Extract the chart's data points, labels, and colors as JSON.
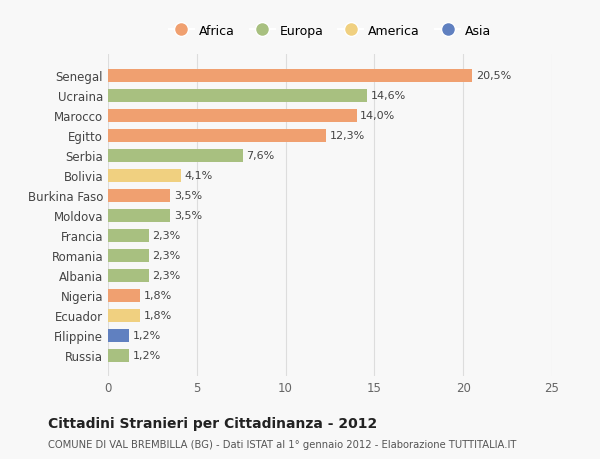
{
  "countries": [
    "Senegal",
    "Ucraina",
    "Marocco",
    "Egitto",
    "Serbia",
    "Bolivia",
    "Burkina Faso",
    "Moldova",
    "Francia",
    "Romania",
    "Albania",
    "Nigeria",
    "Ecuador",
    "Filippine",
    "Russia"
  ],
  "values": [
    20.5,
    14.6,
    14.0,
    12.3,
    7.6,
    4.1,
    3.5,
    3.5,
    2.3,
    2.3,
    2.3,
    1.8,
    1.8,
    1.2,
    1.2
  ],
  "labels": [
    "20,5%",
    "14,6%",
    "14,0%",
    "12,3%",
    "7,6%",
    "4,1%",
    "3,5%",
    "3,5%",
    "2,3%",
    "2,3%",
    "2,3%",
    "1,8%",
    "1,8%",
    "1,2%",
    "1,2%"
  ],
  "continents": [
    "Africa",
    "Europa",
    "Africa",
    "Africa",
    "Europa",
    "America",
    "Africa",
    "Europa",
    "Europa",
    "Europa",
    "Europa",
    "Africa",
    "America",
    "Asia",
    "Europa"
  ],
  "continent_colors": {
    "Africa": "#F0A070",
    "Europa": "#A8C080",
    "America": "#F0D080",
    "Asia": "#6080C0"
  },
  "legend_order": [
    "Africa",
    "Europa",
    "America",
    "Asia"
  ],
  "title": "Cittadini Stranieri per Cittadinanza - 2012",
  "subtitle": "COMUNE DI VAL BREMBILLA (BG) - Dati ISTAT al 1° gennaio 2012 - Elaborazione TUTTITALIA.IT",
  "xlim": [
    0,
    25
  ],
  "xticks": [
    0,
    5,
    10,
    15,
    20,
    25
  ],
  "background_color": "#f8f8f8",
  "grid_color": "#dddddd"
}
